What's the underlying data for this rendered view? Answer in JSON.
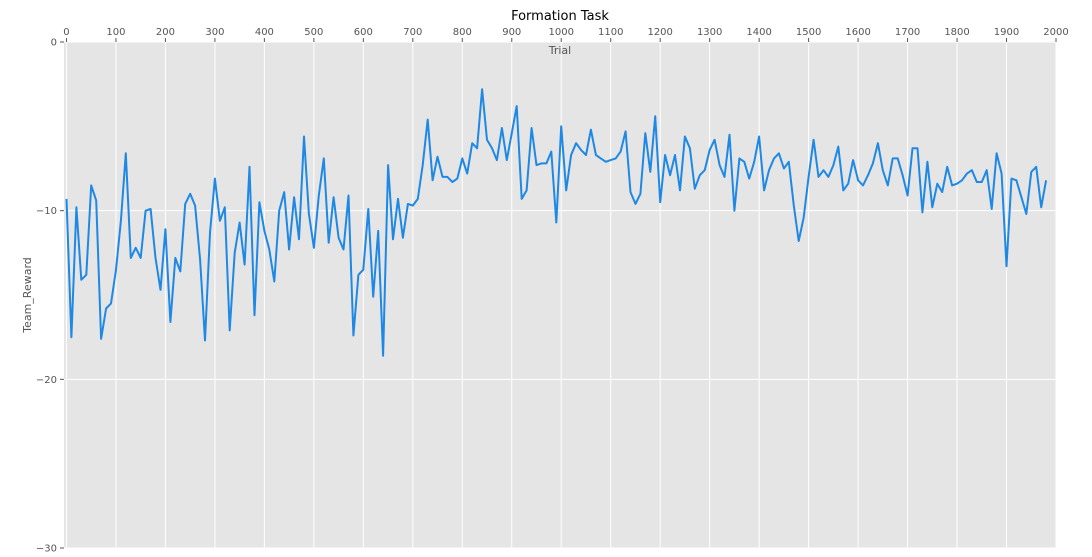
{
  "chart_data": {
    "type": "line",
    "title": "Formation Task",
    "xlabel": "Trial",
    "ylabel": "Team_Reward",
    "xlim": [
      -5,
      2000
    ],
    "ylim": [
      -30,
      0
    ],
    "x_ticks": [
      0,
      100,
      200,
      300,
      400,
      500,
      600,
      700,
      800,
      900,
      1000,
      1100,
      1200,
      1300,
      1400,
      1500,
      1600,
      1700,
      1800,
      1900,
      2000
    ],
    "y_ticks": [
      0,
      -10,
      -20,
      -30
    ],
    "x_tick_labels": [
      "0",
      "100",
      "200",
      "300",
      "400",
      "500",
      "600",
      "700",
      "800",
      "900",
      "1000",
      "1100",
      "1200",
      "1300",
      "1400",
      "1500",
      "1600",
      "1700",
      "1800",
      "1900",
      "2000"
    ],
    "y_tick_labels": [
      "0",
      "−10",
      "−20",
      "−30"
    ],
    "grid": true,
    "x_axis_position": "top",
    "background_color": "#e5e5e5",
    "series": [
      {
        "color": "#1e88e5",
        "x": [
          0,
          10,
          20,
          30,
          40,
          50,
          60,
          70,
          80,
          90,
          100,
          110,
          120,
          130,
          140,
          150,
          160,
          170,
          180,
          190,
          200,
          210,
          220,
          230,
          240,
          250,
          260,
          270,
          280,
          290,
          300,
          310,
          320,
          330,
          340,
          350,
          360,
          370,
          380,
          390,
          400,
          410,
          420,
          430,
          440,
          450,
          460,
          470,
          480,
          490,
          500,
          510,
          520,
          530,
          540,
          550,
          560,
          570,
          580,
          590,
          600,
          610,
          620,
          630,
          640,
          650,
          660,
          670,
          680,
          690,
          700,
          710,
          720,
          730,
          740,
          750,
          760,
          770,
          780,
          790,
          800,
          810,
          820,
          830,
          840,
          850,
          860,
          870,
          880,
          890,
          900,
          910,
          920,
          930,
          940,
          950,
          960,
          970,
          980,
          990,
          1000,
          1010,
          1020,
          1030,
          1040,
          1050,
          1060,
          1070,
          1080,
          1090,
          1100,
          1110,
          1120,
          1130,
          1140,
          1150,
          1160,
          1170,
          1180,
          1190,
          1200,
          1210,
          1220,
          1230,
          1240,
          1250,
          1260,
          1270,
          1280,
          1290,
          1300,
          1310,
          1320,
          1330,
          1340,
          1350,
          1360,
          1370,
          1380,
          1390,
          1400,
          1410,
          1420,
          1430,
          1440,
          1450,
          1460,
          1470,
          1480,
          1490,
          1500,
          1510,
          1520,
          1530,
          1540,
          1550,
          1560,
          1570,
          1580,
          1590,
          1600,
          1610,
          1620,
          1630,
          1640,
          1650,
          1660,
          1670,
          1680,
          1690,
          1700,
          1710,
          1720,
          1730,
          1740,
          1750,
          1760,
          1770,
          1780,
          1790,
          1800,
          1810,
          1820,
          1830,
          1840,
          1850,
          1860,
          1870,
          1880,
          1890,
          1900,
          1910,
          1920,
          1930,
          1940,
          1950,
          1960,
          1970,
          1980
        ],
        "values": [
          -9.3,
          -17.5,
          -9.8,
          -14.1,
          -13.8,
          -8.5,
          -9.4,
          -17.6,
          -15.8,
          -15.5,
          -13.5,
          -10.6,
          -6.6,
          -12.8,
          -12.2,
          -12.8,
          -10,
          -9.9,
          -12.8,
          -14.7,
          -11.1,
          -16.6,
          -12.8,
          -13.6,
          -9.6,
          -9,
          -9.7,
          -12.9,
          -17.7,
          -11.3,
          -8.1,
          -10.6,
          -9.8,
          -17.1,
          -12.5,
          -10.7,
          -13.2,
          -7.4,
          -16.2,
          -9.5,
          -11.2,
          -12.3,
          -14.2,
          -10,
          -8.9,
          -12.3,
          -9.2,
          -11.7,
          -5.6,
          -10.2,
          -12.2,
          -9.1,
          -6.9,
          -11.9,
          -9.2,
          -11.6,
          -12.3,
          -9.1,
          -17.4,
          -13.8,
          -13.5,
          -9.9,
          -15.1,
          -11.2,
          -18.6,
          -7.3,
          -11.7,
          -9.3,
          -11.6,
          -9.6,
          -9.7,
          -9.3,
          -7.3,
          -4.6,
          -8.2,
          -6.8,
          -8,
          -8,
          -8.3,
          -8.1,
          -6.9,
          -7.8,
          -6,
          -6.3,
          -2.8,
          -5.8,
          -6.3,
          -7,
          -5.1,
          -7,
          -5.4,
          -3.8,
          -9.3,
          -8.8,
          -5.1,
          -7.3,
          -7.2,
          -7.2,
          -6.5,
          -10.7,
          -5,
          -8.8,
          -6.7,
          -6,
          -6.4,
          -6.7,
          -5.2,
          -6.7,
          -6.9,
          -7.1,
          -7,
          -6.9,
          -6.5,
          -5.3,
          -8.9,
          -9.6,
          -9,
          -5.4,
          -7.7,
          -4.4,
          -9.5,
          -6.7,
          -7.9,
          -6.7,
          -8.8,
          -5.6,
          -6.3,
          -8.7,
          -7.9,
          -7.6,
          -6.4,
          -5.8,
          -7.3,
          -8,
          -5.5,
          -10,
          -6.9,
          -7.1,
          -8.1,
          -7.1,
          -5.6,
          -8.8,
          -7.6,
          -6.9,
          -6.6,
          -7.5,
          -7.1,
          -9.7,
          -11.8,
          -10.4,
          -8,
          -5.8,
          -8,
          -7.6,
          -8,
          -7.3,
          -6.2,
          -8.8,
          -8.4,
          -7,
          -8.2,
          -8.5,
          -7.9,
          -7.2,
          -6,
          -7.6,
          -8.5,
          -6.9,
          -6.9,
          -7.9,
          -9.1,
          -6.3,
          -6.3,
          -10.1,
          -7.1,
          -9.8,
          -8.4,
          -8.9,
          -7.4,
          -8.5,
          -8.4,
          -8.2,
          -7.8,
          -7.6,
          -8.3,
          -8.3,
          -7.6,
          -9.9,
          -6.6,
          -7.8,
          -13.3,
          -8.1,
          -8.2,
          -9.2,
          -10.2,
          -7.7,
          -7.4,
          -9.8,
          -8.2
        ]
      }
    ]
  }
}
